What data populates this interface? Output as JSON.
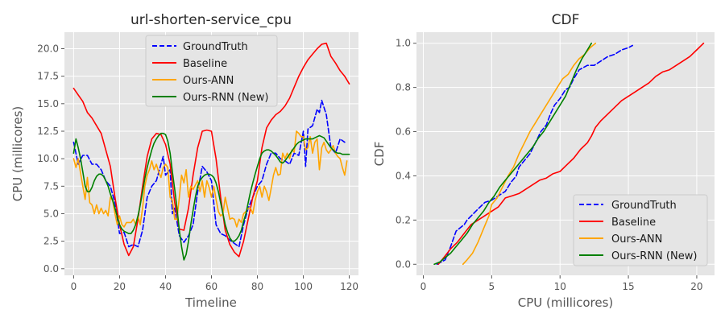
{
  "colors": {
    "plot_bg": "#e5e5e5",
    "grid": "#ffffff",
    "legend_bg": "#e5e5e5",
    "legend_border": "#cccccc"
  },
  "chart_data": [
    {
      "type": "line",
      "title": "url-shorten-service_cpu",
      "xlabel": "Timeline",
      "ylabel": "CPU (millicores)",
      "xlim": [
        -4,
        124
      ],
      "ylim": [
        -0.6,
        21.5
      ],
      "xticks": [
        0,
        20,
        40,
        60,
        80,
        100,
        120
      ],
      "yticks": [
        0.0,
        2.5,
        5.0,
        7.5,
        10.0,
        12.5,
        15.0,
        17.5,
        20.0
      ],
      "ytick_labels": [
        "0.0",
        "2.5",
        "5.0",
        "7.5",
        "10.0",
        "12.5",
        "15.0",
        "17.5",
        "20.0"
      ],
      "grid": true,
      "legend_position": "upper-center",
      "series": [
        {
          "name": "GroundTruth",
          "color": "#0000ff",
          "style": "dashed",
          "x": [
            0,
            2,
            4,
            6,
            8,
            10,
            12,
            14,
            16,
            18,
            20,
            22,
            24,
            26,
            28,
            30,
            32,
            34,
            36,
            38,
            39,
            40,
            42,
            43,
            44,
            46,
            48,
            50,
            52,
            54,
            56,
            58,
            60,
            62,
            64,
            66,
            68,
            70,
            72,
            74,
            76,
            78,
            80,
            82,
            84,
            86,
            88,
            90,
            92,
            94,
            96,
            98,
            100,
            101,
            102,
            104,
            106,
            107,
            108,
            110,
            112,
            114,
            116,
            118
          ],
          "y": [
            11.5,
            9.5,
            10.3,
            10.3,
            9.5,
            9.5,
            9.0,
            8.0,
            7.5,
            6.0,
            3.2,
            3.3,
            2.0,
            2.2,
            2.0,
            3.5,
            6.5,
            7.5,
            8.0,
            9.5,
            10.2,
            8.5,
            9.0,
            5.0,
            5.5,
            3.0,
            2.4,
            3.0,
            4.0,
            7.0,
            9.3,
            8.8,
            8.0,
            4.0,
            3.2,
            3.0,
            2.6,
            2.3,
            2.0,
            4.0,
            5.5,
            6.5,
            7.5,
            8.0,
            9.5,
            10.5,
            10.5,
            10.0,
            9.8,
            9.5,
            10.5,
            10.3,
            12.5,
            9.3,
            12.7,
            13.0,
            14.5,
            14.2,
            15.3,
            14.0,
            11.0,
            10.5,
            11.8,
            11.5
          ]
        },
        {
          "name": "Baseline",
          "color": "#ff0000",
          "style": "solid",
          "x": [
            0,
            2,
            4,
            6,
            8,
            10,
            12,
            14,
            16,
            18,
            20,
            22,
            24,
            26,
            28,
            30,
            32,
            34,
            36,
            38,
            40,
            42,
            44,
            46,
            48,
            50,
            52,
            54,
            56,
            58,
            60,
            62,
            64,
            66,
            68,
            70,
            72,
            74,
            76,
            78,
            80,
            82,
            84,
            86,
            88,
            90,
            92,
            94,
            96,
            98,
            100,
            102,
            104,
            106,
            108,
            110,
            112,
            114,
            116,
            118,
            120
          ],
          "y": [
            16.4,
            15.8,
            15.2,
            14.2,
            13.7,
            13.0,
            12.3,
            10.8,
            9.3,
            6.5,
            4.0,
            2.2,
            1.2,
            2.0,
            4.5,
            7.5,
            10.2,
            11.8,
            12.3,
            12.2,
            11.3,
            9.5,
            6.0,
            3.6,
            3.5,
            5.5,
            8.5,
            11.0,
            12.5,
            12.6,
            12.5,
            10.0,
            6.5,
            3.5,
            2.2,
            1.5,
            1.1,
            2.5,
            4.5,
            6.5,
            8.0,
            11.0,
            12.8,
            13.5,
            14.0,
            14.3,
            14.8,
            15.5,
            16.5,
            17.5,
            18.3,
            19.0,
            19.5,
            20.0,
            20.4,
            20.5,
            19.3,
            18.7,
            18.0,
            17.5,
            16.8
          ]
        },
        {
          "name": "Ours-ANN",
          "color": "#ffa500",
          "style": "solid",
          "x": [
            0,
            1,
            2,
            3,
            4,
            5,
            6,
            7,
            8,
            9,
            10,
            11,
            12,
            13,
            14,
            15,
            16,
            17,
            18,
            19,
            20,
            21,
            22,
            23,
            24,
            25,
            26,
            27,
            28,
            29,
            30,
            31,
            32,
            33,
            34,
            35,
            36,
            37,
            38,
            39,
            40,
            41,
            42,
            43,
            44,
            45,
            46,
            47,
            48,
            49,
            50,
            51,
            52,
            53,
            54,
            55,
            56,
            57,
            58,
            59,
            60,
            61,
            62,
            63,
            64,
            65,
            66,
            67,
            68,
            69,
            70,
            71,
            72,
            73,
            74,
            75,
            76,
            77,
            78,
            79,
            80,
            81,
            82,
            83,
            84,
            85,
            86,
            87,
            88,
            89,
            90,
            91,
            92,
            93,
            94,
            95,
            96,
            97,
            98,
            99,
            100,
            101,
            102,
            103,
            104,
            105,
            106,
            107,
            108,
            109,
            110,
            111,
            112,
            113,
            114,
            115,
            116,
            117,
            118,
            119
          ],
          "y": [
            10.0,
            9.2,
            10.0,
            8.7,
            7.5,
            6.3,
            8.3,
            6.0,
            5.8,
            5.0,
            5.8,
            5.0,
            5.5,
            5.0,
            5.3,
            4.8,
            6.5,
            6.2,
            5.0,
            4.0,
            4.8,
            4.0,
            3.8,
            4.2,
            4.2,
            4.2,
            4.5,
            4.0,
            4.8,
            4.0,
            5.5,
            7.5,
            8.5,
            9.0,
            9.8,
            9.0,
            9.5,
            8.8,
            8.3,
            9.2,
            9.5,
            9.2,
            6.5,
            6.2,
            4.5,
            4.5,
            6.5,
            8.5,
            7.8,
            9.0,
            6.5,
            7.5,
            7.2,
            7.6,
            8.0,
            7.0,
            8.0,
            6.5,
            8.0,
            7.4,
            6.5,
            7.5,
            6.3,
            5.2,
            4.8,
            5.0,
            6.5,
            5.5,
            4.5,
            4.6,
            4.5,
            3.8,
            4.5,
            4.2,
            5.0,
            5.2,
            5.5,
            5.5,
            5.0,
            6.2,
            7.0,
            7.5,
            6.5,
            7.5,
            7.0,
            6.2,
            7.3,
            8.5,
            9.2,
            8.5,
            8.6,
            10.5,
            10.0,
            10.5,
            10.0,
            10.8,
            10.6,
            12.5,
            12.3,
            12.0,
            12.0,
            10.8,
            11.0,
            12.0,
            10.5,
            11.5,
            11.8,
            9.0,
            11.0,
            11.5,
            10.8,
            10.5,
            10.8,
            11.2,
            10.5,
            10.2,
            10.0,
            9.2,
            8.5,
            9.8
          ]
        },
        {
          "name": "Ours-RNN (New)",
          "color": "#008000",
          "style": "solid",
          "x": [
            0,
            1,
            2,
            3,
            4,
            5,
            6,
            7,
            8,
            9,
            10,
            11,
            12,
            13,
            14,
            15,
            16,
            17,
            18,
            19,
            20,
            21,
            22,
            23,
            24,
            25,
            26,
            27,
            28,
            29,
            30,
            31,
            32,
            33,
            34,
            35,
            36,
            37,
            38,
            39,
            40,
            41,
            42,
            43,
            44,
            45,
            46,
            47,
            48,
            49,
            50,
            51,
            52,
            53,
            54,
            55,
            56,
            57,
            58,
            59,
            60,
            61,
            62,
            63,
            64,
            65,
            66,
            67,
            68,
            69,
            70,
            71,
            72,
            73,
            74,
            75,
            76,
            77,
            78,
            79,
            80,
            81,
            82,
            83,
            84,
            85,
            86,
            87,
            88,
            89,
            90,
            91,
            92,
            93,
            94,
            95,
            96,
            97,
            98,
            99,
            100,
            101,
            102,
            103,
            104,
            105,
            106,
            107,
            108,
            109,
            110,
            111,
            112,
            113,
            114,
            115,
            116,
            117,
            118,
            119,
            120
          ],
          "y": [
            10.5,
            11.8,
            11.0,
            10.0,
            8.8,
            7.5,
            7.0,
            7.0,
            7.4,
            8.0,
            8.4,
            8.6,
            8.6,
            8.4,
            8.0,
            7.5,
            6.8,
            6.2,
            5.5,
            4.7,
            4.0,
            3.6,
            3.4,
            3.3,
            3.2,
            3.2,
            3.5,
            4.0,
            4.8,
            5.8,
            7.0,
            8.2,
            9.2,
            10.0,
            10.8,
            11.4,
            11.8,
            12.1,
            12.3,
            12.3,
            12.2,
            11.6,
            10.5,
            8.8,
            7.2,
            5.5,
            3.5,
            2.0,
            0.8,
            1.3,
            2.5,
            4.0,
            5.3,
            6.5,
            7.5,
            8.0,
            8.3,
            8.5,
            8.6,
            8.6,
            8.5,
            8.3,
            7.8,
            7.0,
            6.0,
            5.0,
            4.0,
            3.3,
            2.8,
            2.5,
            2.5,
            2.7,
            3.0,
            3.5,
            4.3,
            5.0,
            6.0,
            7.0,
            7.8,
            8.6,
            9.3,
            10.0,
            10.5,
            10.7,
            10.8,
            10.8,
            10.7,
            10.5,
            10.3,
            10.0,
            9.7,
            9.6,
            9.8,
            10.1,
            10.4,
            10.7,
            11.0,
            11.3,
            11.5,
            11.6,
            11.7,
            11.8,
            11.8,
            11.8,
            11.8,
            11.9,
            12.0,
            12.1,
            12.0,
            11.9,
            11.6,
            11.3,
            11.0,
            10.8,
            10.6,
            10.5,
            10.5,
            10.4,
            10.4,
            10.4,
            10.4
          ]
        }
      ]
    },
    {
      "type": "line",
      "title": "CDF",
      "xlabel": "CPU (millicores)",
      "ylabel": "CDF",
      "xlim": [
        -0.5,
        21.3
      ],
      "ylim": [
        -0.05,
        1.05
      ],
      "xticks": [
        0,
        5,
        10,
        15,
        20
      ],
      "yticks": [
        0.0,
        0.2,
        0.4,
        0.6,
        0.8,
        1.0
      ],
      "ytick_labels": [
        "0.0",
        "0.2",
        "0.4",
        "0.6",
        "0.8",
        "1.0"
      ],
      "grid": true,
      "legend_position": "lower-right",
      "series": [
        {
          "name": "GroundTruth",
          "color": "#0000ff",
          "style": "dashed",
          "x": [
            1.0,
            1.6,
            2.0,
            2.4,
            3.0,
            3.2,
            4.0,
            4.5,
            5.0,
            5.5,
            6.0,
            6.4,
            6.8,
            7.0,
            7.4,
            7.8,
            8.2,
            8.6,
            9.0,
            9.3,
            9.6,
            10.0,
            10.4,
            10.7,
            11.0,
            11.4,
            12.0,
            12.5,
            13.0,
            13.5,
            14.0,
            14.5,
            15.0,
            15.3
          ],
          "y": [
            0.0,
            0.02,
            0.08,
            0.15,
            0.18,
            0.2,
            0.25,
            0.28,
            0.29,
            0.31,
            0.33,
            0.37,
            0.4,
            0.44,
            0.47,
            0.5,
            0.55,
            0.6,
            0.63,
            0.68,
            0.72,
            0.75,
            0.79,
            0.8,
            0.84,
            0.88,
            0.9,
            0.9,
            0.92,
            0.94,
            0.95,
            0.97,
            0.98,
            0.99
          ]
        },
        {
          "name": "Baseline",
          "color": "#ff0000",
          "style": "solid",
          "x": [
            1.1,
            1.5,
            2.0,
            2.5,
            3.0,
            3.5,
            4.0,
            4.5,
            5.0,
            5.5,
            6.0,
            6.5,
            7.0,
            7.5,
            8.0,
            8.5,
            9.0,
            9.5,
            10.0,
            10.5,
            11.0,
            11.5,
            12.0,
            12.3,
            12.6,
            13.0,
            13.5,
            14.0,
            14.5,
            15.0,
            15.5,
            16.0,
            16.5,
            17.0,
            17.5,
            18.0,
            18.5,
            19.0,
            19.5,
            20.0,
            20.5
          ],
          "y": [
            0.0,
            0.03,
            0.07,
            0.1,
            0.14,
            0.18,
            0.2,
            0.22,
            0.24,
            0.26,
            0.3,
            0.31,
            0.32,
            0.34,
            0.36,
            0.38,
            0.39,
            0.41,
            0.42,
            0.45,
            0.48,
            0.52,
            0.55,
            0.58,
            0.62,
            0.65,
            0.68,
            0.71,
            0.74,
            0.76,
            0.78,
            0.8,
            0.82,
            0.85,
            0.87,
            0.88,
            0.9,
            0.92,
            0.94,
            0.97,
            1.0
          ]
        },
        {
          "name": "Ours-ANN",
          "color": "#ffa500",
          "style": "solid",
          "x": [
            2.9,
            3.2,
            3.6,
            4.0,
            4.4,
            4.8,
            5.0,
            5.4,
            5.8,
            6.2,
            6.6,
            7.0,
            7.4,
            7.8,
            8.2,
            8.6,
            9.0,
            9.4,
            9.8,
            10.2,
            10.6,
            11.0,
            11.4,
            11.8,
            12.2,
            12.6
          ],
          "y": [
            0.0,
            0.02,
            0.05,
            0.1,
            0.16,
            0.22,
            0.27,
            0.3,
            0.35,
            0.4,
            0.44,
            0.5,
            0.55,
            0.6,
            0.64,
            0.68,
            0.72,
            0.76,
            0.8,
            0.84,
            0.86,
            0.9,
            0.93,
            0.95,
            0.98,
            1.0
          ]
        },
        {
          "name": "Ours-RNN (New)",
          "color": "#008000",
          "style": "solid",
          "x": [
            0.8,
            1.2,
            1.6,
            2.0,
            2.4,
            2.8,
            3.2,
            3.6,
            4.0,
            4.4,
            4.8,
            5.2,
            5.6,
            6.0,
            6.4,
            6.8,
            7.2,
            7.6,
            8.0,
            8.4,
            8.8,
            9.2,
            9.6,
            10.0,
            10.4,
            10.8,
            11.2,
            11.6,
            12.0,
            12.3
          ],
          "y": [
            0.0,
            0.01,
            0.03,
            0.05,
            0.08,
            0.11,
            0.14,
            0.18,
            0.21,
            0.24,
            0.28,
            0.31,
            0.35,
            0.38,
            0.41,
            0.44,
            0.47,
            0.5,
            0.53,
            0.57,
            0.6,
            0.64,
            0.68,
            0.72,
            0.76,
            0.82,
            0.88,
            0.93,
            0.97,
            1.0
          ]
        }
      ]
    }
  ]
}
